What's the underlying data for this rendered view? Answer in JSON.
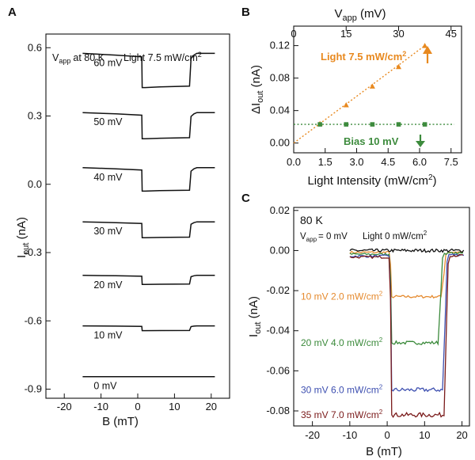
{
  "chart_data": [
    {
      "panel": "A",
      "type": "line",
      "xlabel": "B (mT)",
      "ylabel": "I_out (nA)",
      "xlim": [
        -25,
        25
      ],
      "ylim": [
        -0.94,
        0.66
      ],
      "xticks": [
        "-20",
        "-10",
        "0",
        "10",
        "20"
      ],
      "yticks": [
        "0.6",
        "0.3",
        "0.0",
        "-0.3",
        "-0.6",
        "-0.9"
      ],
      "annotations": {
        "vapp": "at 80 K",
        "light": "Light 7.5 mW/cm"
      },
      "series": [
        {
          "name": "60 mV",
          "base": 0.575,
          "low": 0.425,
          "drop_x": 1.2,
          "rise_x": 14.5
        },
        {
          "name": "50 mV",
          "base": 0.315,
          "low": 0.2,
          "drop_x": 1.2,
          "rise_x": 14.5
        },
        {
          "name": "40 mV",
          "base": 0.073,
          "low": -0.03,
          "drop_x": 1.2,
          "rise_x": 14.5
        },
        {
          "name": "30 mV",
          "base": -0.165,
          "low": -0.235,
          "drop_x": 1.2,
          "rise_x": 14.5
        },
        {
          "name": "20 mV",
          "base": -0.4,
          "low": -0.44,
          "drop_x": 1.2,
          "rise_x": 14.5
        },
        {
          "name": "10 mV",
          "base": -0.622,
          "low": -0.643,
          "drop_x": 1.2,
          "rise_x": 14.5
        },
        {
          "name": "0  mV",
          "base": -0.845,
          "low": -0.845,
          "drop_x": 1.2,
          "rise_x": 14.5
        }
      ]
    },
    {
      "panel": "B",
      "type": "scatter",
      "xlabel": "Light Intensity (mW/cm",
      "ylabel": "ΔI_out (nA)",
      "top_xlabel": "V_app (mV)",
      "xlim": [
        0,
        8
      ],
      "ylim": [
        -0.012,
        0.144
      ],
      "xticks": [
        "0.0",
        "1.5",
        "3.0",
        "4.5",
        "6.0",
        "7.5"
      ],
      "yticks": [
        "0.00",
        "0.04",
        "0.08",
        "0.12"
      ],
      "top_xticks": [
        "0",
        "15",
        "30",
        "45"
      ],
      "series": [
        {
          "name": "Light 7.5 mW/cm",
          "color": "#e8891f",
          "points": [
            [
              1.25,
              0.024
            ],
            [
              2.5,
              0.047
            ],
            [
              3.75,
              0.07
            ],
            [
              5.0,
              0.094
            ],
            [
              6.25,
              0.12
            ]
          ],
          "fit": [
            [
              0,
              0
            ],
            [
              6.25,
              0.12
            ]
          ]
        },
        {
          "name": "Bias 10 mV",
          "color": "#3d8b3d",
          "points": [
            [
              1.25,
              0.023
            ],
            [
              2.5,
              0.023
            ],
            [
              3.75,
              0.023
            ],
            [
              5.0,
              0.023
            ],
            [
              6.25,
              0.023
            ]
          ],
          "fit": [
            [
              0,
              0.023
            ],
            [
              7.65,
              0.023
            ]
          ]
        }
      ]
    },
    {
      "panel": "C",
      "type": "line",
      "xlabel": "B (mT)",
      "ylabel": "I_out (nA)",
      "xlim": [
        -25,
        22
      ],
      "ylim": [
        -0.0875,
        0.0215
      ],
      "xticks": [
        "-20",
        "-10",
        "0",
        "10",
        "20"
      ],
      "yticks": [
        "0.02",
        "0.00",
        "-0.02",
        "-0.04",
        "-0.06",
        "-0.08"
      ],
      "annotations": {
        "temp": "80 K",
        "vapp": "= 0 mV",
        "light0": "Light 0 mW/cm"
      },
      "series": [
        {
          "name": "10 mV  2.0 mW/cm",
          "color": "#e58a2e",
          "low": -0.023
        },
        {
          "name": "20 mV  4.0 mW/cm",
          "color": "#3b8a3b",
          "low": -0.046
        },
        {
          "name": "30 mV  6.0 mW/cm",
          "color": "#3d4fb0",
          "low": -0.0695
        },
        {
          "name": "35 mV  7.0 mW/cm",
          "color": "#7a1a1a",
          "low": -0.082
        },
        {
          "name": "0 mV",
          "color": "#111111",
          "low": 0.0
        }
      ]
    }
  ]
}
